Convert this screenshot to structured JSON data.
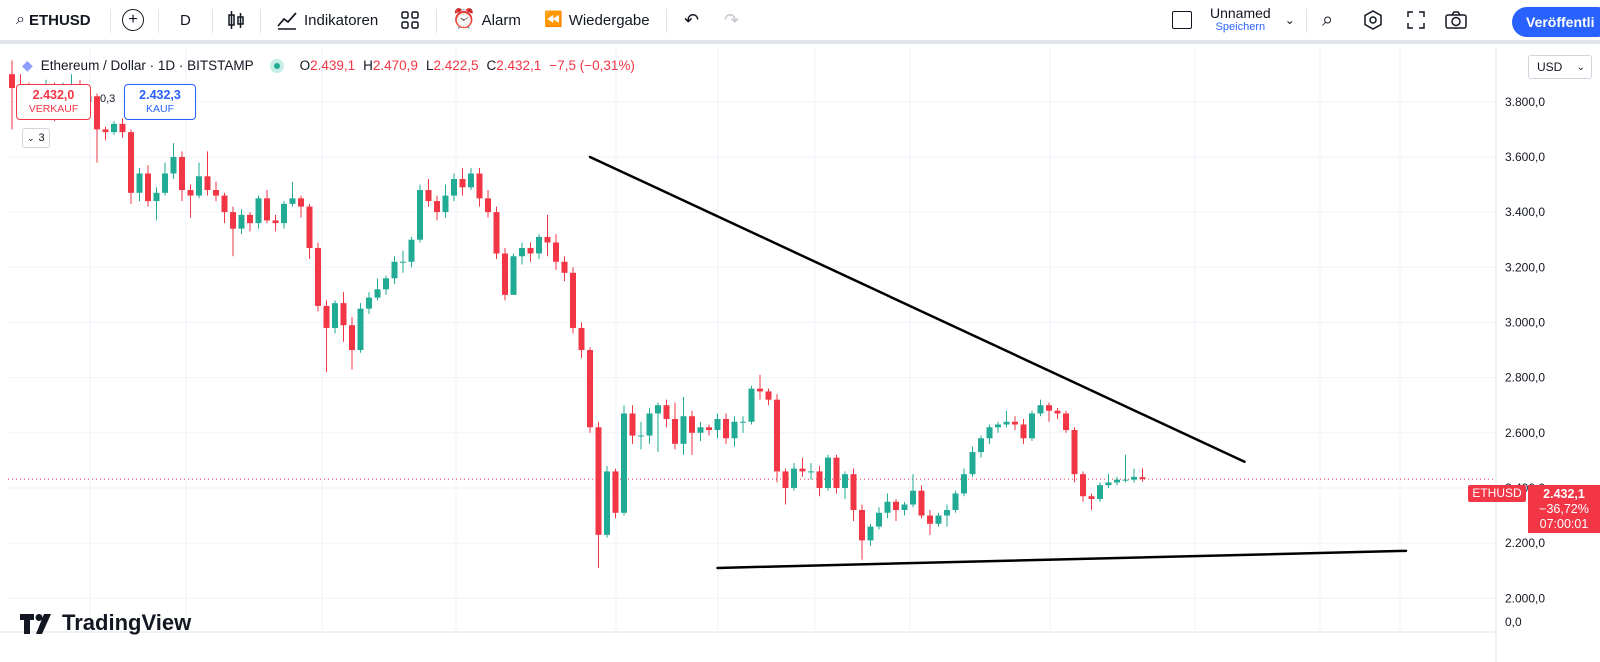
{
  "toolbar": {
    "symbol": "ETHUSD",
    "interval": "D",
    "indicators_label": "Indikatoren",
    "alarm_label": "Alarm",
    "replay_label": "Wiedergabe",
    "layout_name": "Unnamed",
    "layout_status": "Speichern",
    "publish_label": "Veröffentli"
  },
  "legend": {
    "title": "Ethereum / Dollar · 1D · BITSTAMP",
    "o_label": "O",
    "o": "2.439,1",
    "h_label": "H",
    "h": "2.470,9",
    "l_label": "L",
    "l": "2.422,5",
    "c_label": "C",
    "c": "2.432,1",
    "change": "−7,5 (−0,31%)"
  },
  "trade": {
    "sell_price": "2.432,0",
    "sell_label": "VERKAUF",
    "spread": "0,3",
    "buy_price": "2.432,3",
    "buy_label": "KAUF",
    "badge_count": "3"
  },
  "price_scale": {
    "currency": "USD",
    "last_symbol": "ETHUSD",
    "last_price": "2.432,1",
    "last_change": "−36,72%",
    "countdown": "07:00:01"
  },
  "branding": {
    "logo_text": "TradingView"
  },
  "colors": {
    "up": "#22ab94",
    "down": "#f23645",
    "accent": "#2962ff",
    "trendline": "#000000"
  },
  "chart_data": {
    "type": "candlestick",
    "yticks": [
      {
        "value": 3800,
        "label": "3.800,0"
      },
      {
        "value": 3600,
        "label": "3.600,0"
      },
      {
        "value": 3400,
        "label": "3.400,0"
      },
      {
        "value": 3200,
        "label": "3.200,0"
      },
      {
        "value": 3000,
        "label": "3.000,0"
      },
      {
        "value": 2800,
        "label": "2.800,0"
      },
      {
        "value": 2600,
        "label": "2.600,0"
      },
      {
        "value": 2400,
        "label": "2.400,0"
      },
      {
        "value": 2200,
        "label": "2.200,0"
      },
      {
        "value": 2000,
        "label": "2.000,0"
      }
    ],
    "volume_tick": "0,0",
    "ylim": [
      1885,
      3995
    ],
    "last_price": 2432.1,
    "candles": [
      [
        3900,
        3850,
        3950,
        3700
      ],
      [
        3850,
        3810,
        3900,
        3780
      ],
      [
        3810,
        3800,
        3870,
        3760
      ],
      [
        3800,
        3820,
        3860,
        3770
      ],
      [
        3820,
        3840,
        3880,
        3800
      ],
      [
        3840,
        3780,
        3870,
        3730
      ],
      [
        3780,
        3830,
        3870,
        3760
      ],
      [
        3830,
        3850,
        3900,
        3810
      ],
      [
        3850,
        3800,
        3880,
        3780
      ],
      [
        3800,
        3820,
        3860,
        3790
      ],
      [
        3820,
        3700,
        3830,
        3580
      ],
      [
        3700,
        3690,
        3710,
        3660
      ],
      [
        3690,
        3720,
        3730,
        3680
      ],
      [
        3720,
        3690,
        3740,
        3670
      ],
      [
        3690,
        3470,
        3700,
        3430
      ],
      [
        3470,
        3540,
        3560,
        3440
      ],
      [
        3540,
        3440,
        3570,
        3420
      ],
      [
        3440,
        3470,
        3490,
        3370
      ],
      [
        3470,
        3540,
        3580,
        3460
      ],
      [
        3540,
        3600,
        3650,
        3520
      ],
      [
        3600,
        3480,
        3620,
        3440
      ],
      [
        3480,
        3460,
        3500,
        3380
      ],
      [
        3460,
        3530,
        3580,
        3450
      ],
      [
        3530,
        3480,
        3620,
        3460
      ],
      [
        3480,
        3460,
        3510,
        3440
      ],
      [
        3460,
        3400,
        3470,
        3360
      ],
      [
        3400,
        3340,
        3420,
        3240
      ],
      [
        3340,
        3390,
        3410,
        3320
      ],
      [
        3390,
        3360,
        3400,
        3330
      ],
      [
        3360,
        3450,
        3460,
        3340
      ],
      [
        3450,
        3370,
        3480,
        3360
      ],
      [
        3370,
        3360,
        3390,
        3330
      ],
      [
        3360,
        3430,
        3440,
        3340
      ],
      [
        3430,
        3450,
        3510,
        3420
      ],
      [
        3450,
        3420,
        3460,
        3380
      ],
      [
        3420,
        3270,
        3430,
        3230
      ],
      [
        3270,
        3060,
        3290,
        3040
      ],
      [
        3060,
        2980,
        3080,
        2820
      ],
      [
        2980,
        3070,
        3080,
        2960
      ],
      [
        3070,
        2990,
        3110,
        2930
      ],
      [
        2990,
        2900,
        3020,
        2830
      ],
      [
        2900,
        3050,
        3070,
        2890
      ],
      [
        3050,
        3090,
        3110,
        3030
      ],
      [
        3090,
        3120,
        3160,
        3080
      ],
      [
        3120,
        3160,
        3170,
        3100
      ],
      [
        3160,
        3220,
        3240,
        3140
      ],
      [
        3220,
        3220,
        3260,
        3180
      ],
      [
        3220,
        3300,
        3310,
        3200
      ],
      [
        3300,
        3480,
        3500,
        3290
      ],
      [
        3480,
        3440,
        3520,
        3420
      ],
      [
        3440,
        3400,
        3460,
        3370
      ],
      [
        3400,
        3460,
        3500,
        3380
      ],
      [
        3460,
        3520,
        3540,
        3440
      ],
      [
        3520,
        3490,
        3560,
        3460
      ],
      [
        3490,
        3540,
        3560,
        3480
      ],
      [
        3540,
        3450,
        3560,
        3420
      ],
      [
        3450,
        3400,
        3480,
        3380
      ],
      [
        3400,
        3250,
        3420,
        3230
      ],
      [
        3250,
        3100,
        3270,
        3080
      ],
      [
        3100,
        3240,
        3250,
        3180
      ],
      [
        3240,
        3270,
        3290,
        3210
      ],
      [
        3270,
        3250,
        3290,
        3220
      ],
      [
        3250,
        3310,
        3320,
        3230
      ],
      [
        3310,
        3290,
        3390,
        3240
      ],
      [
        3290,
        3220,
        3320,
        3190
      ],
      [
        3220,
        3180,
        3240,
        3150
      ],
      [
        3180,
        2980,
        3200,
        2960
      ],
      [
        2980,
        2900,
        3000,
        2870
      ],
      [
        2900,
        2620,
        2910,
        2600
      ],
      [
        2620,
        2230,
        2640,
        2110
      ],
      [
        2230,
        2460,
        2480,
        2220
      ],
      [
        2460,
        2310,
        2470,
        2290
      ],
      [
        2310,
        2670,
        2700,
        2300
      ],
      [
        2670,
        2590,
        2700,
        2560
      ],
      [
        2590,
        2590,
        2640,
        2540
      ],
      [
        2590,
        2670,
        2690,
        2560
      ],
      [
        2670,
        2700,
        2710,
        2530
      ],
      [
        2700,
        2650,
        2720,
        2620
      ],
      [
        2650,
        2560,
        2710,
        2540
      ],
      [
        2560,
        2660,
        2730,
        2520
      ],
      [
        2660,
        2600,
        2680,
        2520
      ],
      [
        2600,
        2620,
        2640,
        2570
      ],
      [
        2620,
        2610,
        2630,
        2590
      ],
      [
        2610,
        2650,
        2670,
        2580
      ],
      [
        2650,
        2580,
        2670,
        2560
      ],
      [
        2580,
        2640,
        2660,
        2550
      ],
      [
        2640,
        2640,
        2660,
        2600
      ],
      [
        2640,
        2760,
        2770,
        2630
      ],
      [
        2760,
        2750,
        2810,
        2720
      ],
      [
        2750,
        2720,
        2760,
        2700
      ],
      [
        2720,
        2460,
        2740,
        2420
      ],
      [
        2460,
        2400,
        2470,
        2340
      ],
      [
        2400,
        2470,
        2490,
        2390
      ],
      [
        2470,
        2460,
        2510,
        2440
      ],
      [
        2460,
        2460,
        2490,
        2430
      ],
      [
        2460,
        2400,
        2480,
        2370
      ],
      [
        2400,
        2510,
        2520,
        2390
      ],
      [
        2510,
        2400,
        2520,
        2380
      ],
      [
        2400,
        2450,
        2460,
        2360
      ],
      [
        2450,
        2320,
        2470,
        2280
      ],
      [
        2320,
        2210,
        2340,
        2140
      ],
      [
        2210,
        2260,
        2270,
        2190
      ],
      [
        2260,
        2310,
        2330,
        2250
      ],
      [
        2310,
        2350,
        2380,
        2290
      ],
      [
        2350,
        2320,
        2360,
        2280
      ],
      [
        2320,
        2340,
        2350,
        2300
      ],
      [
        2340,
        2390,
        2450,
        2330
      ],
      [
        2390,
        2300,
        2410,
        2290
      ],
      [
        2300,
        2270,
        2320,
        2230
      ],
      [
        2270,
        2300,
        2310,
        2260
      ],
      [
        2300,
        2320,
        2340,
        2260
      ],
      [
        2320,
        2380,
        2390,
        2310
      ],
      [
        2380,
        2450,
        2470,
        2370
      ],
      [
        2450,
        2530,
        2550,
        2440
      ],
      [
        2530,
        2580,
        2590,
        2510
      ],
      [
        2580,
        2620,
        2630,
        2560
      ],
      [
        2620,
        2630,
        2640,
        2600
      ],
      [
        2630,
        2640,
        2680,
        2620
      ],
      [
        2640,
        2630,
        2660,
        2610
      ],
      [
        2630,
        2580,
        2650,
        2560
      ],
      [
        2580,
        2670,
        2680,
        2570
      ],
      [
        2670,
        2700,
        2720,
        2660
      ],
      [
        2700,
        2680,
        2710,
        2640
      ],
      [
        2680,
        2670,
        2690,
        2650
      ],
      [
        2670,
        2610,
        2680,
        2600
      ],
      [
        2610,
        2450,
        2620,
        2420
      ],
      [
        2450,
        2370,
        2460,
        2350
      ],
      [
        2370,
        2360,
        2380,
        2320
      ],
      [
        2360,
        2410,
        2420,
        2350
      ],
      [
        2410,
        2420,
        2450,
        2400
      ],
      [
        2420,
        2430,
        2440,
        2410
      ],
      [
        2430,
        2430,
        2520,
        2420
      ],
      [
        2430,
        2440,
        2470,
        2420
      ],
      [
        2439.1,
        2432.1,
        2470.9,
        2422.5
      ]
    ],
    "trendlines": [
      {
        "name": "upper",
        "from": {
          "i": 68,
          "v": 3600
        },
        "to": {
          "i": 145,
          "v": 2495
        }
      },
      {
        "name": "lower",
        "from": {
          "i": 83,
          "v": 2110
        },
        "to": {
          "i": 164,
          "v": 2172
        }
      }
    ]
  }
}
